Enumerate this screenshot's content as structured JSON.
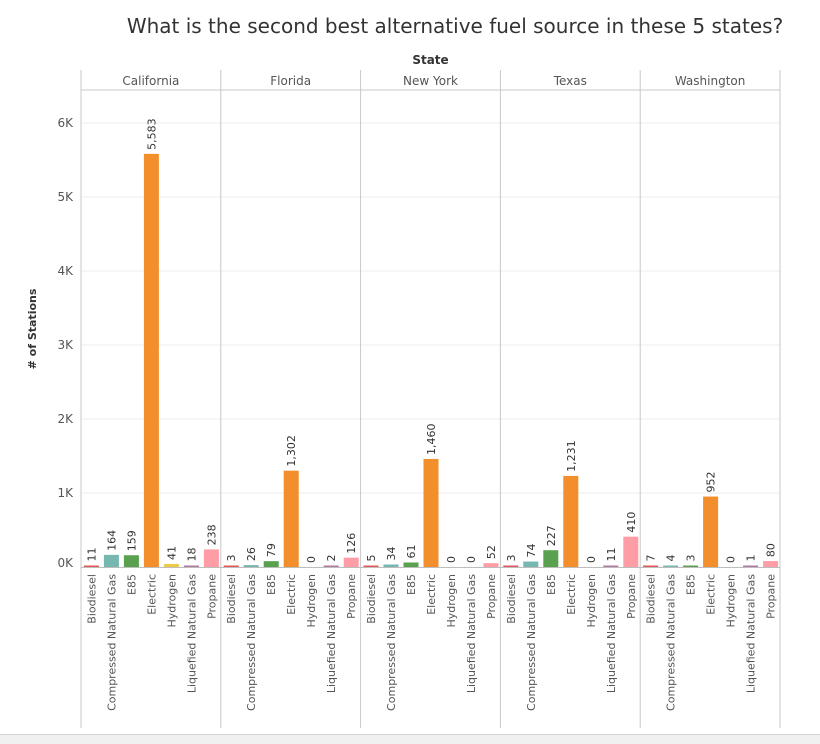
{
  "chart_data": {
    "type": "bar",
    "title": "What is the second best alternative fuel source in these 5 states?",
    "column_header": "State",
    "ylabel": "# of Stations",
    "ylim": [
      0,
      6500
    ],
    "yticks": [
      0,
      1000,
      2000,
      3000,
      4000,
      5000,
      6000
    ],
    "ytick_labels": [
      "0K",
      "1K",
      "2K",
      "3K",
      "4K",
      "5K",
      "6K"
    ],
    "grid": true,
    "categories": [
      "Biodiesel",
      "Compressed Natural Gas",
      "E85",
      "Electric",
      "Hydrogen",
      "Liquefied Natural Gas",
      "Propane"
    ],
    "category_colors": [
      "#e15759",
      "#76b7b2",
      "#59a14f",
      "#f28e2b",
      "#edc948",
      "#b07aa1",
      "#ff9da7"
    ],
    "panels": [
      {
        "state": "California",
        "values": [
          11,
          164,
          159,
          5583,
          41,
          18,
          238
        ],
        "labels": [
          "11",
          "164",
          "159",
          "5,583",
          "41",
          "18",
          "238"
        ]
      },
      {
        "state": "Florida",
        "values": [
          3,
          26,
          79,
          1302,
          0,
          2,
          126
        ],
        "labels": [
          "3",
          "26",
          "79",
          "1,302",
          "0",
          "2",
          "126"
        ]
      },
      {
        "state": "New York",
        "values": [
          5,
          34,
          61,
          1460,
          0,
          0,
          52
        ],
        "labels": [
          "5",
          "34",
          "61",
          "1,460",
          "0",
          "0",
          "52"
        ]
      },
      {
        "state": "Texas",
        "values": [
          3,
          74,
          227,
          1231,
          0,
          11,
          410
        ],
        "labels": [
          "3",
          "74",
          "227",
          "1,231",
          "0",
          "11",
          "410"
        ]
      },
      {
        "state": "Washington",
        "values": [
          7,
          4,
          3,
          952,
          0,
          1,
          80
        ],
        "labels": [
          "7",
          "4",
          "3",
          "952",
          "0",
          "1",
          "80"
        ]
      }
    ]
  }
}
